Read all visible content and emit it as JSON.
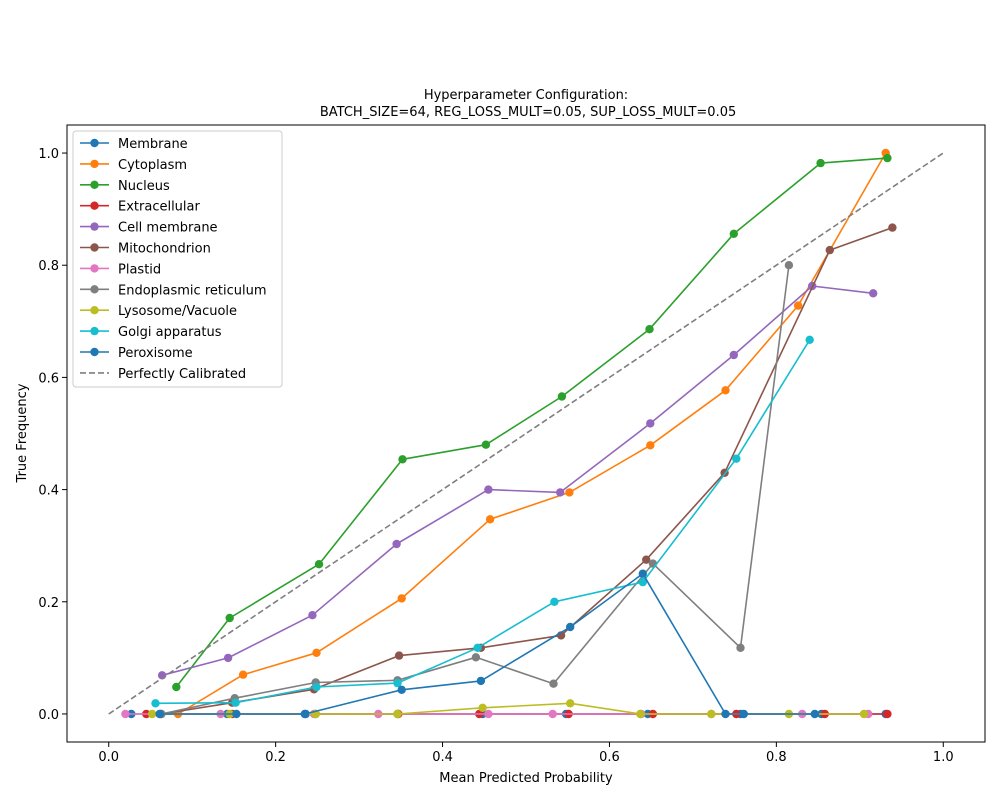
{
  "chart_data": {
    "type": "line",
    "title_line1": "Hyperparameter Configuration:",
    "title_line2": " BATCH_SIZE=64, REG_LOSS_MULT=0.05, SUP_LOSS_MULT=0.05",
    "xlabel": "Mean Predicted Probability",
    "ylabel": "True Frequency",
    "xlim": [
      -0.05,
      1.05
    ],
    "ylim": [
      -0.05,
      1.05
    ],
    "xticks": [
      0.0,
      0.2,
      0.4,
      0.6,
      0.8,
      1.0
    ],
    "xtick_labels": [
      "0.0",
      "0.2",
      "0.4",
      "0.6",
      "0.8",
      "1.0"
    ],
    "yticks": [
      0.0,
      0.2,
      0.4,
      0.6,
      0.8,
      1.0
    ],
    "ytick_labels": [
      "0.0",
      "0.2",
      "0.4",
      "0.6",
      "0.8",
      "1.0"
    ],
    "legend_position": "upper-left",
    "series": [
      {
        "name": "Membrane",
        "color": "#1f77b4",
        "points": [
          [
            0.027,
            0.0
          ],
          [
            0.142,
            0.0
          ],
          [
            0.236,
            0.0
          ],
          [
            0.346,
            0.0
          ],
          [
            0.448,
            0.0
          ],
          [
            0.548,
            0.0
          ],
          [
            0.646,
            0.0
          ],
          [
            0.757,
            0.0
          ],
          [
            0.854,
            0.0
          ],
          [
            0.931,
            0.0
          ]
        ]
      },
      {
        "name": "Cytoplasm",
        "color": "#ff7f0e",
        "points": [
          [
            0.083,
            0.0
          ],
          [
            0.161,
            0.07
          ],
          [
            0.249,
            0.109
          ],
          [
            0.351,
            0.206
          ],
          [
            0.457,
            0.347
          ],
          [
            0.552,
            0.395
          ],
          [
            0.649,
            0.479
          ],
          [
            0.739,
            0.577
          ],
          [
            0.826,
            0.728
          ],
          [
            0.931,
            1.0
          ]
        ]
      },
      {
        "name": "Nucleus",
        "color": "#2ca02c",
        "points": [
          [
            0.081,
            0.048
          ],
          [
            0.145,
            0.171
          ],
          [
            0.252,
            0.267
          ],
          [
            0.352,
            0.454
          ],
          [
            0.452,
            0.48
          ],
          [
            0.543,
            0.566
          ],
          [
            0.648,
            0.686
          ],
          [
            0.749,
            0.856
          ],
          [
            0.853,
            0.982
          ],
          [
            0.933,
            0.991
          ]
        ]
      },
      {
        "name": "Extracellular",
        "color": "#d62728",
        "points": [
          [
            0.045,
            0.0
          ],
          [
            0.148,
            0.0
          ],
          [
            0.248,
            0.0
          ],
          [
            0.347,
            0.0
          ],
          [
            0.444,
            0.0
          ],
          [
            0.551,
            0.0
          ],
          [
            0.652,
            0.0
          ],
          [
            0.752,
            0.0
          ],
          [
            0.858,
            0.0
          ],
          [
            0.933,
            0.0
          ]
        ]
      },
      {
        "name": "Cell membrane",
        "color": "#9467bd",
        "points": [
          [
            0.064,
            0.069
          ],
          [
            0.143,
            0.1
          ],
          [
            0.244,
            0.176
          ],
          [
            0.345,
            0.303
          ],
          [
            0.455,
            0.4
          ],
          [
            0.541,
            0.395
          ],
          [
            0.649,
            0.518
          ],
          [
            0.749,
            0.64
          ],
          [
            0.843,
            0.763
          ],
          [
            0.916,
            0.75
          ]
        ]
      },
      {
        "name": "Mitochondrion",
        "color": "#8c564b",
        "points": [
          [
            0.063,
            0.0
          ],
          [
            0.148,
            0.02
          ],
          [
            0.246,
            0.044
          ],
          [
            0.348,
            0.104
          ],
          [
            0.446,
            0.118
          ],
          [
            0.542,
            0.14
          ],
          [
            0.644,
            0.275
          ],
          [
            0.738,
            0.43
          ],
          [
            0.864,
            0.827
          ],
          [
            0.939,
            0.867
          ]
        ]
      },
      {
        "name": "Plastid",
        "color": "#e377c2",
        "points": [
          [
            0.02,
            0.0
          ],
          [
            0.134,
            0.0
          ],
          [
            0.246,
            0.0
          ],
          [
            0.323,
            0.0
          ],
          [
            0.455,
            0.0
          ],
          [
            0.532,
            0.0
          ],
          [
            0.638,
            0.0
          ],
          [
            0.722,
            0.0
          ],
          [
            0.831,
            0.0
          ],
          [
            0.91,
            0.0
          ]
        ]
      },
      {
        "name": "Endoplasmic reticulum",
        "color": "#7f7f7f",
        "points": [
          [
            0.063,
            0.0
          ],
          [
            0.151,
            0.028
          ],
          [
            0.248,
            0.056
          ],
          [
            0.346,
            0.06
          ],
          [
            0.44,
            0.101
          ],
          [
            0.533,
            0.054
          ],
          [
            0.652,
            0.268
          ],
          [
            0.757,
            0.118
          ],
          [
            0.815,
            0.8
          ]
        ]
      },
      {
        "name": "Lysosome/Vacuole",
        "color": "#bcbd22",
        "points": [
          [
            0.052,
            0.0
          ],
          [
            0.145,
            0.0
          ],
          [
            0.248,
            0.0
          ],
          [
            0.346,
            0.0
          ],
          [
            0.448,
            0.011
          ],
          [
            0.553,
            0.019
          ],
          [
            0.637,
            0.0
          ],
          [
            0.722,
            0.0
          ],
          [
            0.815,
            0.0
          ],
          [
            0.905,
            0.0
          ]
        ]
      },
      {
        "name": "Golgi apparatus",
        "color": "#17becf",
        "points": [
          [
            0.056,
            0.019
          ],
          [
            0.152,
            0.02
          ],
          [
            0.249,
            0.048
          ],
          [
            0.346,
            0.055
          ],
          [
            0.442,
            0.118
          ],
          [
            0.534,
            0.2
          ],
          [
            0.64,
            0.235
          ],
          [
            0.752,
            0.455
          ],
          [
            0.84,
            0.667
          ]
        ]
      },
      {
        "name": "Peroxisome",
        "color": "#1f77b4",
        "points": [
          [
            0.061,
            0.0
          ],
          [
            0.153,
            0.0
          ],
          [
            0.235,
            0.0
          ],
          [
            0.351,
            0.043
          ],
          [
            0.446,
            0.059
          ],
          [
            0.553,
            0.155
          ],
          [
            0.64,
            0.25
          ],
          [
            0.739,
            0.0
          ],
          [
            0.761,
            0.0
          ],
          [
            0.846,
            0.0
          ]
        ]
      },
      {
        "name": "Perfectly Calibrated",
        "color": "#7f7f7f",
        "dashed": true,
        "points": [
          [
            0.0,
            0.0
          ],
          [
            1.0,
            1.0
          ]
        ]
      }
    ]
  }
}
